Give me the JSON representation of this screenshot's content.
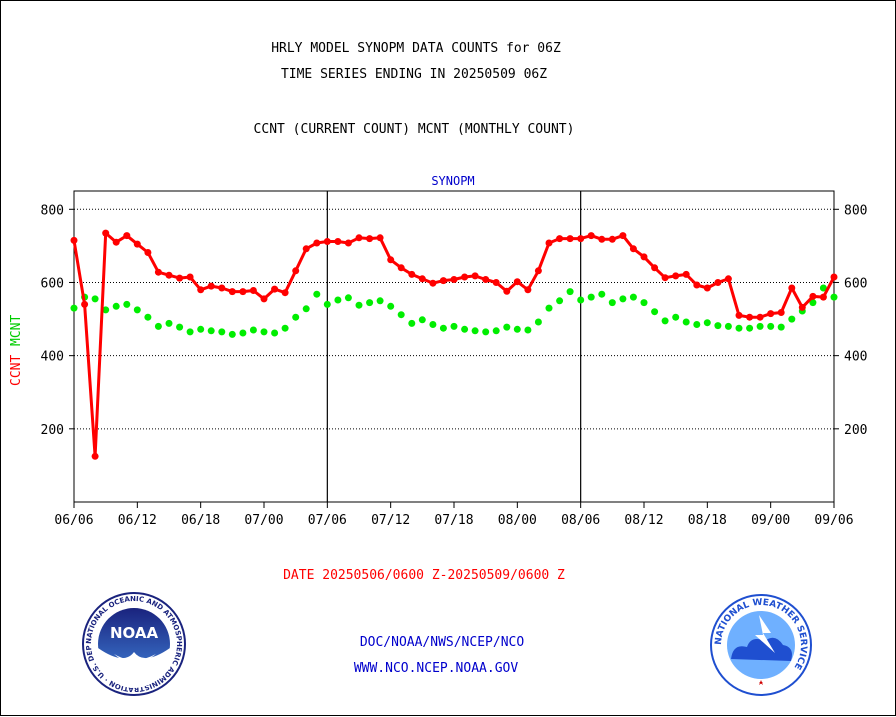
{
  "header": {
    "title_line1": "HRLY MODEL SYNOPM DATA COUNTS for 06Z",
    "title_line2": "TIME SERIES ENDING IN 20250509 06Z",
    "subtitle": "CCNT (CURRENT COUNT) MCNT (MONTHLY COUNT)"
  },
  "footer": {
    "date_range": "DATE 20250506/0600 Z-20250509/0600 Z",
    "link1": "DOC/NOAA/NWS/NCEP/NCO",
    "link2": "WWW.NCO.NCEP.NOAA.GOV"
  },
  "logos": {
    "noaa_text": "NOAA",
    "noaa_ring_text": "NATIONAL OCEANIC AND ATMOSPHERIC ADMINISTRATION · U.S. DEPARTMENT OF COMMERCE ·",
    "nws_ring_text": "NATIONAL WEATHER SERVICE"
  },
  "colors": {
    "ccnt": "#ff0000",
    "mcnt": "#00ee00",
    "panel_title": "#0000cc",
    "link": "#0000cc",
    "date": "#ff0000"
  },
  "chart_data": {
    "type": "line",
    "panel_title": "SYNOPM",
    "y_label_ccnt": "CCNT",
    "y_label_mcnt": "MCNT",
    "ylim": [
      0,
      850
    ],
    "yticks": [
      200,
      400,
      600,
      800
    ],
    "xticks": [
      "06/06",
      "06/12",
      "06/18",
      "07/00",
      "07/06",
      "07/12",
      "07/18",
      "08/00",
      "08/06",
      "08/12",
      "08/18",
      "09/00",
      "09/06"
    ],
    "x_range_hours": [
      0,
      72
    ],
    "grid": "dotted horizontal at y ticks; solid vertical day separators",
    "series": [
      {
        "name": "CCNT",
        "color": "#ff0000",
        "values": [
          [
            0,
            715
          ],
          [
            1,
            540
          ],
          [
            2,
            125
          ],
          [
            3,
            735
          ],
          [
            4,
            710
          ],
          [
            5,
            728
          ],
          [
            6,
            705
          ],
          [
            7,
            682
          ],
          [
            8,
            628
          ],
          [
            9,
            620
          ],
          [
            10,
            612
          ],
          [
            11,
            615
          ],
          [
            12,
            580
          ],
          [
            13,
            590
          ],
          [
            14,
            585
          ],
          [
            15,
            575
          ],
          [
            16,
            575
          ],
          [
            17,
            578
          ],
          [
            18,
            555
          ],
          [
            19,
            582
          ],
          [
            20,
            572
          ],
          [
            21,
            632
          ],
          [
            22,
            692
          ],
          [
            23,
            708
          ],
          [
            24,
            712
          ],
          [
            25,
            712
          ],
          [
            26,
            708
          ],
          [
            27,
            722
          ],
          [
            28,
            720
          ],
          [
            29,
            722
          ],
          [
            30,
            662
          ],
          [
            31,
            640
          ],
          [
            32,
            622
          ],
          [
            33,
            610
          ],
          [
            34,
            598
          ],
          [
            35,
            605
          ],
          [
            36,
            608
          ],
          [
            37,
            615
          ],
          [
            38,
            618
          ],
          [
            39,
            608
          ],
          [
            40,
            600
          ],
          [
            41,
            576
          ],
          [
            42,
            602
          ],
          [
            43,
            580
          ],
          [
            44,
            632
          ],
          [
            45,
            708
          ],
          [
            46,
            720
          ],
          [
            47,
            720
          ],
          [
            48,
            720
          ],
          [
            49,
            728
          ],
          [
            50,
            718
          ],
          [
            51,
            718
          ],
          [
            52,
            728
          ],
          [
            53,
            692
          ],
          [
            54,
            670
          ],
          [
            55,
            640
          ],
          [
            56,
            613
          ],
          [
            57,
            618
          ],
          [
            58,
            622
          ],
          [
            59,
            593
          ],
          [
            60,
            585
          ],
          [
            61,
            600
          ],
          [
            62,
            610
          ],
          [
            63,
            510
          ],
          [
            64,
            505
          ],
          [
            65,
            505
          ],
          [
            66,
            515
          ],
          [
            67,
            518
          ],
          [
            68,
            585
          ],
          [
            69,
            532
          ],
          [
            70,
            562
          ],
          [
            71,
            560
          ],
          [
            72,
            615
          ]
        ]
      },
      {
        "name": "MCNT",
        "color": "#00ee00",
        "values": [
          [
            0,
            530
          ],
          [
            1,
            560
          ],
          [
            2,
            555
          ],
          [
            3,
            525
          ],
          [
            4,
            535
          ],
          [
            5,
            540
          ],
          [
            6,
            525
          ],
          [
            7,
            505
          ],
          [
            8,
            480
          ],
          [
            9,
            488
          ],
          [
            10,
            478
          ],
          [
            11,
            465
          ],
          [
            12,
            472
          ],
          [
            13,
            468
          ],
          [
            14,
            465
          ],
          [
            15,
            458
          ],
          [
            16,
            462
          ],
          [
            17,
            470
          ],
          [
            18,
            465
          ],
          [
            19,
            462
          ],
          [
            20,
            475
          ],
          [
            21,
            505
          ],
          [
            22,
            528
          ],
          [
            23,
            568
          ],
          [
            24,
            540
          ],
          [
            25,
            552
          ],
          [
            26,
            558
          ],
          [
            27,
            538
          ],
          [
            28,
            545
          ],
          [
            29,
            550
          ],
          [
            30,
            535
          ],
          [
            31,
            512
          ],
          [
            32,
            488
          ],
          [
            33,
            498
          ],
          [
            34,
            485
          ],
          [
            35,
            475
          ],
          [
            36,
            480
          ],
          [
            37,
            472
          ],
          [
            38,
            468
          ],
          [
            39,
            465
          ],
          [
            40,
            468
          ],
          [
            41,
            478
          ],
          [
            42,
            472
          ],
          [
            43,
            470
          ],
          [
            44,
            492
          ],
          [
            45,
            530
          ],
          [
            46,
            550
          ],
          [
            47,
            575
          ],
          [
            48,
            552
          ],
          [
            49,
            560
          ],
          [
            50,
            568
          ],
          [
            51,
            545
          ],
          [
            52,
            555
          ],
          [
            53,
            560
          ],
          [
            54,
            545
          ],
          [
            55,
            520
          ],
          [
            56,
            495
          ],
          [
            57,
            505
          ],
          [
            58,
            492
          ],
          [
            59,
            485
          ],
          [
            60,
            490
          ],
          [
            61,
            482
          ],
          [
            62,
            480
          ],
          [
            63,
            475
          ],
          [
            64,
            475
          ],
          [
            65,
            480
          ],
          [
            66,
            480
          ],
          [
            67,
            478
          ],
          [
            68,
            500
          ],
          [
            69,
            522
          ],
          [
            70,
            545
          ],
          [
            71,
            585
          ],
          [
            72,
            560
          ]
        ]
      }
    ]
  }
}
